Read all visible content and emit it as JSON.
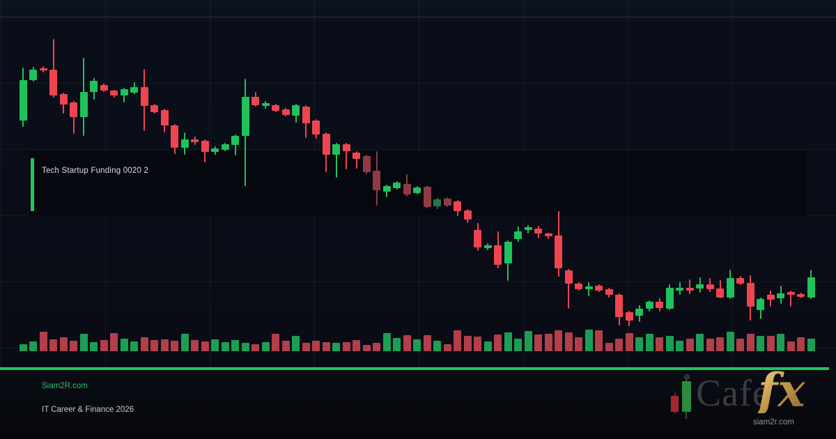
{
  "overlay_label": {
    "text": "Tech Startup Funding 0020 2"
  },
  "footer": {
    "site": "Siam2R.com",
    "tagline": "IT Career & Finance 2026"
  },
  "logo": {
    "cafe": "Cafe",
    "fx": "fx",
    "url": "siam2r.com"
  },
  "colors": {
    "accent_green": "#22c55e",
    "candle_up": "#1fc25c",
    "candle_down": "#ee4551",
    "candle_up_muted": "#1e7b45",
    "candle_down_muted": "#8e3b45",
    "volume_up": "#1d9e55",
    "volume_down": "#b23f4a",
    "site_text": "#2fbf6b",
    "logo_gold": "#c49c4e",
    "logo_cafe_gray": "#3c3c40"
  },
  "chart_data": {
    "type": "candlestick_with_volume",
    "title": "",
    "xlabel": "",
    "ylabel": "",
    "axis_labels_visible": false,
    "grid": true,
    "price_range": [
      0,
      112
    ],
    "columns": [
      "open",
      "high",
      "low",
      "close",
      "volume"
    ],
    "candles": [
      [
        83.0,
        100.7,
        80.9,
        96.5,
        10
      ],
      [
        96.5,
        100.9,
        96.0,
        100.0,
        14
      ],
      [
        100.5,
        101.2,
        99.1,
        99.8,
        28
      ],
      [
        100.0,
        110.2,
        90.7,
        91.4,
        17
      ],
      [
        91.9,
        92.3,
        85.3,
        88.4,
        20
      ],
      [
        89.1,
        89.5,
        78.6,
        84.2,
        15
      ],
      [
        84.2,
        104.0,
        77.9,
        92.6,
        25
      ],
      [
        92.6,
        97.2,
        90.0,
        96.3,
        13
      ],
      [
        94.9,
        95.3,
        92.6,
        93.0,
        16
      ],
      [
        93.0,
        93.3,
        90.7,
        91.4,
        26
      ],
      [
        91.4,
        94.0,
        89.1,
        93.5,
        18
      ],
      [
        92.3,
        95.8,
        91.9,
        94.2,
        14
      ],
      [
        94.2,
        100.2,
        79.5,
        87.9,
        20
      ],
      [
        88.1,
        88.6,
        85.3,
        85.8,
        16
      ],
      [
        86.5,
        86.9,
        79.1,
        81.4,
        17
      ],
      [
        81.4,
        81.8,
        71.9,
        74.0,
        15
      ],
      [
        74.0,
        79.1,
        71.6,
        76.7,
        25
      ],
      [
        76.7,
        77.7,
        74.9,
        75.8,
        16
      ],
      [
        76.3,
        76.7,
        69.1,
        72.6,
        14
      ],
      [
        72.6,
        74.4,
        71.6,
        73.7,
        17
      ],
      [
        73.3,
        75.6,
        72.8,
        75.1,
        13
      ],
      [
        74.9,
        78.4,
        71.4,
        77.9,
        16
      ],
      [
        77.9,
        97.0,
        61.2,
        90.9,
        12
      ],
      [
        90.9,
        92.6,
        87.7,
        88.1,
        10
      ],
      [
        87.9,
        89.5,
        87.0,
        88.8,
        13
      ],
      [
        88.1,
        88.6,
        85.8,
        86.3,
        25
      ],
      [
        86.7,
        87.2,
        84.4,
        84.9,
        15
      ],
      [
        84.7,
        88.6,
        82.3,
        88.1,
        22
      ],
      [
        87.7,
        88.1,
        77.2,
        82.1,
        12
      ],
      [
        83.0,
        83.5,
        77.0,
        78.4,
        15
      ],
      [
        78.6,
        79.1,
        65.8,
        71.6,
        13
      ],
      [
        71.6,
        75.6,
        64.0,
        75.1,
        12
      ],
      [
        75.1,
        75.6,
        66.7,
        72.8,
        13
      ],
      [
        72.3,
        72.8,
        67.0,
        70.2,
        16
      ],
      [
        71.2,
        71.6,
        65.1,
        65.8,
        9
      ],
      [
        66.3,
        72.8,
        54.7,
        59.8,
        12
      ],
      [
        59.3,
        61.6,
        57.4,
        61.2,
        26
      ],
      [
        60.5,
        62.8,
        60.0,
        62.3,
        19
      ],
      [
        61.9,
        65.1,
        57.7,
        58.4,
        23
      ],
      [
        58.8,
        61.2,
        58.4,
        60.7,
        17
      ],
      [
        60.9,
        61.4,
        53.8,
        54.2,
        23
      ],
      [
        54.4,
        57.2,
        53.5,
        56.7,
        15
      ],
      [
        57.0,
        57.4,
        54.2,
        54.7,
        10
      ],
      [
        56.0,
        56.5,
        51.2,
        52.8,
        30
      ],
      [
        53.0,
        53.5,
        48.8,
        50.0,
        22
      ],
      [
        46.5,
        48.8,
        39.5,
        40.7,
        21
      ],
      [
        40.5,
        42.1,
        39.8,
        41.4,
        14
      ],
      [
        41.4,
        46.0,
        33.7,
        34.9,
        24
      ],
      [
        35.3,
        43.0,
        29.5,
        42.6,
        27
      ],
      [
        43.5,
        47.7,
        42.6,
        46.0,
        18
      ],
      [
        46.5,
        48.1,
        45.3,
        47.4,
        29
      ],
      [
        47.0,
        47.9,
        43.7,
        45.3,
        24
      ],
      [
        45.3,
        45.6,
        43.5,
        44.4,
        25
      ],
      [
        44.7,
        52.8,
        30.9,
        33.7,
        30
      ],
      [
        33.0,
        33.5,
        20.2,
        28.6,
        27
      ],
      [
        28.6,
        29.1,
        26.3,
        26.7,
        20
      ],
      [
        26.7,
        29.1,
        24.4,
        27.7,
        31
      ],
      [
        27.9,
        28.4,
        25.8,
        26.3,
        30
      ],
      [
        26.7,
        27.2,
        24.0,
        24.9,
        12
      ],
      [
        24.9,
        25.3,
        14.7,
        17.4,
        18
      ],
      [
        19.1,
        19.5,
        14.4,
        16.3,
        26
      ],
      [
        17.9,
        21.4,
        15.8,
        20.2,
        20
      ],
      [
        20.2,
        23.0,
        19.3,
        22.6,
        25
      ],
      [
        22.6,
        23.7,
        19.3,
        20.5,
        20
      ],
      [
        20.2,
        28.4,
        19.8,
        27.2,
        22
      ],
      [
        26.3,
        29.1,
        24.9,
        27.2,
        15
      ],
      [
        27.2,
        30.0,
        25.1,
        26.3,
        18
      ],
      [
        27.0,
        30.7,
        25.6,
        28.4,
        25
      ],
      [
        28.4,
        30.5,
        25.8,
        26.7,
        18
      ],
      [
        27.0,
        29.8,
        23.7,
        24.0,
        20
      ],
      [
        24.0,
        33.3,
        23.5,
        30.5,
        28
      ],
      [
        30.5,
        31.2,
        28.2,
        28.6,
        18
      ],
      [
        28.8,
        31.4,
        16.3,
        20.9,
        25
      ],
      [
        19.8,
        24.0,
        16.7,
        23.5,
        22
      ],
      [
        24.9,
        26.3,
        20.9,
        23.3,
        22
      ],
      [
        23.7,
        27.9,
        21.9,
        25.3,
        25
      ],
      [
        25.8,
        26.3,
        20.9,
        24.9,
        14
      ],
      [
        25.1,
        25.6,
        23.7,
        24.2,
        20
      ],
      [
        24.0,
        33.3,
        23.5,
        30.7,
        18
      ]
    ],
    "muted_indices": [
      34,
      35,
      38,
      40,
      41,
      42
    ],
    "legend": null
  }
}
